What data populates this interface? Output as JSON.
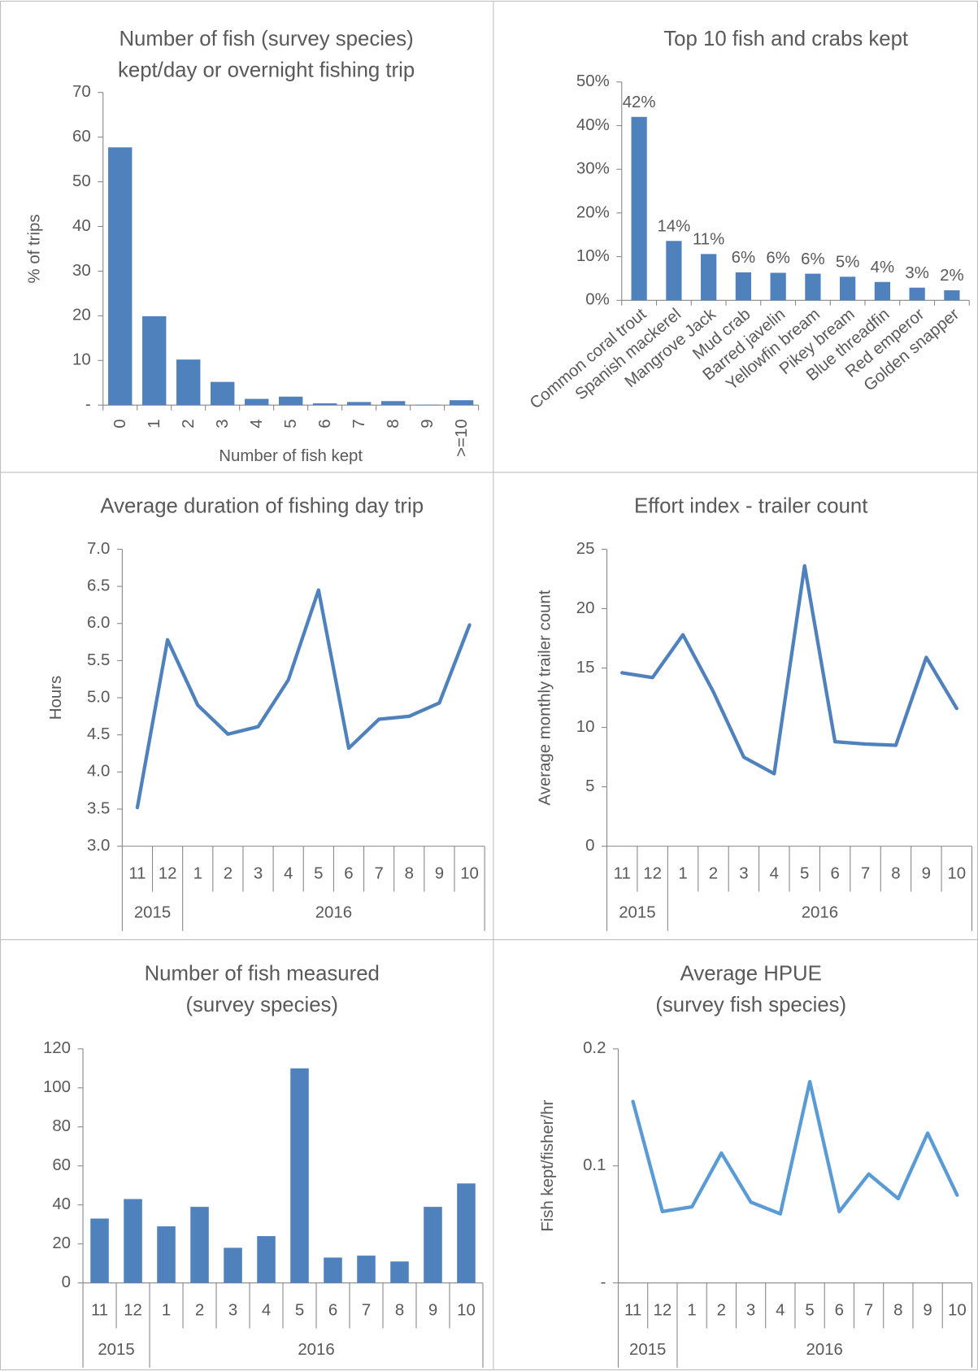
{
  "chart_data": [
    {
      "type": "bar",
      "title": [
        "Number of fish (survey species)",
        "kept/day or overnight fishing trip"
      ],
      "y_label": "% of trips",
      "x_label": "Number of fish kept",
      "categories": [
        "0",
        "1",
        "2",
        "3",
        "4",
        "5",
        "6",
        "7",
        "8",
        "9",
        ">=10"
      ],
      "values": [
        57.7,
        19.9,
        10.2,
        5.2,
        1.4,
        1.9,
        0.4,
        0.7,
        0.9,
        0.1,
        1.1
      ],
      "color": "#4f81bd",
      "ylim": [
        0,
        70
      ],
      "yticks": [
        {
          "value": 0,
          "label": "-"
        },
        10,
        20,
        30,
        40,
        50,
        60,
        70
      ]
    },
    {
      "type": "bar",
      "title": [
        "Top 10 fish and crabs kept"
      ],
      "categories": [
        "Common coral trout",
        "Spanish mackerel",
        "Mangrove Jack",
        "Mud crab",
        "Barred javelin",
        "Yellowfin bream",
        "Pikey bream",
        "Blue threadfin",
        "Red emperor",
        "Golden snapper"
      ],
      "values": [
        42,
        13.6,
        10.6,
        6.4,
        6.3,
        6.1,
        5.4,
        4.2,
        2.9,
        2.3
      ],
      "value_labels": [
        "42%",
        "14%",
        "11%",
        "6%",
        "6%",
        "6%",
        "5%",
        "4%",
        "3%",
        "2%"
      ],
      "color": "#4f81bd",
      "ylim": [
        0,
        50
      ],
      "yticks": [
        {
          "value": 0,
          "label": "0%"
        },
        {
          "value": 10,
          "label": "10%"
        },
        {
          "value": 20,
          "label": "20%"
        },
        {
          "value": 30,
          "label": "30%"
        },
        {
          "value": 40,
          "label": "40%"
        },
        {
          "value": 50,
          "label": "50%"
        }
      ]
    },
    {
      "type": "line",
      "title": [
        "Average duration of fishing day trip"
      ],
      "y_label": "Hours",
      "categories": [
        "11",
        "12",
        "1",
        "2",
        "3",
        "4",
        "5",
        "6",
        "7",
        "8",
        "9",
        "10"
      ],
      "category_years": [
        "2015",
        "2015",
        "2016",
        "2016",
        "2016",
        "2016",
        "2016",
        "2016",
        "2016",
        "2016",
        "2016",
        "2016"
      ],
      "values": [
        3.52,
        5.78,
        4.9,
        4.51,
        4.61,
        5.24,
        6.45,
        4.32,
        4.71,
        4.75,
        4.93,
        5.98
      ],
      "color": "#4f81bd",
      "ylim": [
        3,
        7
      ],
      "yticks": [
        {
          "value": 3,
          "label": "3.0"
        },
        3.5,
        {
          "value": 4,
          "label": "4.0"
        },
        4.5,
        {
          "value": 5,
          "label": "5.0"
        },
        5.5,
        {
          "value": 6,
          "label": "6.0"
        },
        6.5,
        {
          "value": 7,
          "label": "7.0"
        }
      ]
    },
    {
      "type": "line",
      "title": [
        "Effort index - trailer count"
      ],
      "y_label": "Average monthly trailer count",
      "categories": [
        "11",
        "12",
        "1",
        "2",
        "3",
        "4",
        "5",
        "6",
        "7",
        "8",
        "9",
        "10"
      ],
      "category_years": [
        "2015",
        "2015",
        "2016",
        "2016",
        "2016",
        "2016",
        "2016",
        "2016",
        "2016",
        "2016",
        "2016",
        "2016"
      ],
      "values": [
        14.6,
        14.2,
        17.8,
        13.0,
        7.5,
        6.1,
        23.6,
        8.8,
        8.6,
        8.5,
        15.9,
        11.6
      ],
      "color": "#4f81bd",
      "ylim": [
        0,
        25
      ],
      "yticks": [
        0,
        5,
        10,
        15,
        20,
        25
      ]
    },
    {
      "type": "bar",
      "title": [
        "Number of fish measured",
        "(survey species)"
      ],
      "categories": [
        "11",
        "12",
        "1",
        "2",
        "3",
        "4",
        "5",
        "6",
        "7",
        "8",
        "9",
        "10"
      ],
      "category_years": [
        "2015",
        "2015",
        "2016",
        "2016",
        "2016",
        "2016",
        "2016",
        "2016",
        "2016",
        "2016",
        "2016",
        "2016"
      ],
      "values": [
        33,
        43,
        29,
        39,
        18,
        24,
        110,
        13,
        14,
        11,
        39,
        51
      ],
      "color": "#4f81bd",
      "ylim": [
        0,
        120
      ],
      "yticks": [
        0,
        20,
        40,
        60,
        80,
        100,
        120
      ]
    },
    {
      "type": "line",
      "title": [
        "Average HPUE",
        "(survey fish species)"
      ],
      "y_label": "Fish kept/fisher/hr",
      "categories": [
        "11",
        "12",
        "1",
        "2",
        "3",
        "4",
        "5",
        "6",
        "7",
        "8",
        "9",
        "10"
      ],
      "category_years": [
        "2015",
        "2015",
        "2016",
        "2016",
        "2016",
        "2016",
        "2016",
        "2016",
        "2016",
        "2016",
        "2016",
        "2016"
      ],
      "values": [
        0.155,
        0.061,
        0.065,
        0.111,
        0.069,
        0.059,
        0.172,
        0.061,
        0.093,
        0.072,
        0.128,
        0.075
      ],
      "color": "#5b9bd5",
      "ylim": [
        0,
        0.2
      ],
      "yticks": [
        {
          "value": 0,
          "label": "-"
        },
        0.1,
        0.2
      ]
    }
  ]
}
